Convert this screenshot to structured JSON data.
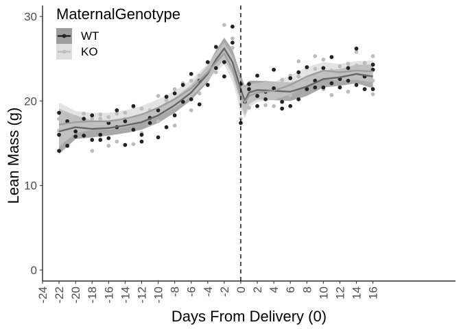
{
  "chart_data": {
    "type": "scatter",
    "title": "",
    "xlabel": "Days From Delivery (0)",
    "ylabel": "Lean Mass (g)",
    "xlim": [
      -24,
      26
    ],
    "ylim": [
      -1.3,
      31.3
    ],
    "x_ticks": [
      -24,
      -22,
      -20,
      -18,
      -16,
      -14,
      -12,
      -10,
      -8,
      -6,
      -4,
      -2,
      0,
      2,
      4,
      6,
      8,
      10,
      12,
      14,
      16
    ],
    "y_ticks": [
      0,
      10,
      20,
      30
    ],
    "grid": false,
    "vline": {
      "x": 0,
      "style": "dashed"
    },
    "legend": {
      "title": "MaternalGenotype",
      "position": "top-left",
      "entries": [
        "WT",
        "KO"
      ]
    },
    "colors": {
      "WT": "#222222",
      "KO": "#bdbdbd",
      "WT_line": "#666666",
      "KO_line": "#9e9e9e",
      "WT_band": "#8c8c8c",
      "KO_band": "#d0d0d0"
    },
    "series": [
      {
        "name": "WT",
        "points": [
          [
            -22,
            18.6
          ],
          [
            -22,
            16.0
          ],
          [
            -22,
            14.1
          ],
          [
            -21,
            17.6
          ],
          [
            -21,
            14.7
          ],
          [
            -20,
            16.4
          ],
          [
            -20,
            15.8
          ],
          [
            -19,
            15.9
          ],
          [
            -19,
            17.9
          ],
          [
            -18,
            15.4
          ],
          [
            -18,
            18.3
          ],
          [
            -17,
            16.0
          ],
          [
            -17,
            15.4
          ],
          [
            -16,
            17.4
          ],
          [
            -16,
            15.6
          ],
          [
            -15,
            18.9
          ],
          [
            -15,
            16.9
          ],
          [
            -14,
            14.8
          ],
          [
            -14,
            17.6
          ],
          [
            -13,
            16.6
          ],
          [
            -13,
            19.4
          ],
          [
            -12,
            15.2
          ],
          [
            -12,
            16.0
          ],
          [
            -11,
            18.0
          ],
          [
            -11,
            17.4
          ],
          [
            -10,
            15.7
          ],
          [
            -10,
            18.9
          ],
          [
            -9,
            16.9
          ],
          [
            -9,
            20.5
          ],
          [
            -8,
            18.3
          ],
          [
            -8,
            20.9
          ],
          [
            -7,
            19.9
          ],
          [
            -7,
            21.9
          ],
          [
            -6,
            20.2
          ],
          [
            -6,
            23.2
          ],
          [
            -5,
            19.6
          ],
          [
            -5,
            22.4
          ],
          [
            -4,
            21.9
          ],
          [
            -4,
            24.6
          ],
          [
            -3,
            26.4
          ],
          [
            -3,
            23.9
          ],
          [
            -2,
            24.6
          ],
          [
            -2,
            22.9
          ],
          [
            -1,
            28.8
          ],
          [
            -1,
            26.9
          ],
          [
            0,
            22.0
          ],
          [
            0,
            17.4
          ],
          [
            0.5,
            19.9
          ],
          [
            1,
            21.4
          ],
          [
            1,
            22.0
          ],
          [
            2,
            19.4
          ],
          [
            2,
            20.6
          ],
          [
            2,
            23.0
          ],
          [
            3,
            21.1
          ],
          [
            3,
            20.2
          ],
          [
            4,
            23.7
          ],
          [
            4,
            21.5
          ],
          [
            5,
            19.9
          ],
          [
            5,
            19.1
          ],
          [
            6,
            22.7
          ],
          [
            6,
            19.4
          ],
          [
            7,
            20.2
          ],
          [
            7,
            23.4
          ],
          [
            8,
            21.4
          ],
          [
            8,
            24.0
          ],
          [
            9,
            21.6
          ],
          [
            9,
            22.4
          ],
          [
            10,
            23.9
          ],
          [
            10,
            21.6
          ],
          [
            11,
            25.2
          ],
          [
            11,
            22.1
          ],
          [
            12,
            22.6
          ],
          [
            12,
            21.6
          ],
          [
            13,
            23.9
          ],
          [
            13,
            22.4
          ],
          [
            14,
            26.2
          ],
          [
            14,
            21.9
          ],
          [
            15,
            22.9
          ],
          [
            15,
            21.4
          ],
          [
            16,
            23.7
          ],
          [
            16,
            21.4
          ],
          [
            16,
            24.3
          ]
        ],
        "smooth": [
          [
            -22,
            16.4
          ],
          [
            -20,
            16.9
          ],
          [
            -18,
            16.7
          ],
          [
            -16,
            16.8
          ],
          [
            -14,
            17.1
          ],
          [
            -12,
            17.5
          ],
          [
            -10,
            18.3
          ],
          [
            -8,
            19.5
          ],
          [
            -6,
            21.0
          ],
          [
            -4,
            23.2
          ],
          [
            -3,
            24.9
          ],
          [
            -2,
            26.2
          ],
          [
            -1,
            24.6
          ],
          [
            0,
            21.4
          ],
          [
            0.5,
            20.0
          ],
          [
            1,
            21.0
          ],
          [
            2,
            21.3
          ],
          [
            4,
            21.2
          ],
          [
            6,
            21.1
          ],
          [
            8,
            21.7
          ],
          [
            10,
            22.6
          ],
          [
            12,
            22.8
          ],
          [
            14,
            23.2
          ],
          [
            16,
            22.9
          ]
        ],
        "band_width": [
          2.7,
          1.4,
          1.0,
          0.9,
          0.9,
          0.9,
          0.9,
          0.9,
          0.9,
          1.0,
          1.1,
          1.3,
          1.5,
          1.7,
          1.8,
          1.4,
          1.1,
          1.1,
          1.1,
          1.1,
          1.0,
          1.0,
          1.1,
          1.4
        ]
      },
      {
        "name": "KO",
        "points": [
          [
            -22,
            17.9
          ],
          [
            -22,
            16.5
          ],
          [
            -21,
            18.2
          ],
          [
            -21,
            17.5
          ],
          [
            -20,
            18.1
          ],
          [
            -20,
            17.0
          ],
          [
            -19,
            18.5
          ],
          [
            -19,
            17.6
          ],
          [
            -18,
            14.1
          ],
          [
            -18,
            17.9
          ],
          [
            -17,
            18.4
          ],
          [
            -17,
            17.9
          ],
          [
            -16,
            14.7
          ],
          [
            -16,
            18.1
          ],
          [
            -15,
            15.2
          ],
          [
            -15,
            18.5
          ],
          [
            -14,
            17.9
          ],
          [
            -14,
            18.6
          ],
          [
            -13,
            14.9
          ],
          [
            -13,
            19.3
          ],
          [
            -12,
            16.2
          ],
          [
            -12,
            19.1
          ],
          [
            -11,
            17.2
          ],
          [
            -11,
            18.9
          ],
          [
            -10,
            17.6
          ],
          [
            -10,
            20.6
          ],
          [
            -9,
            20.1
          ],
          [
            -9,
            19.6
          ],
          [
            -8,
            17.1
          ],
          [
            -8,
            21.4
          ],
          [
            -7,
            20.6
          ],
          [
            -7,
            22.1
          ],
          [
            -6,
            18.9
          ],
          [
            -6,
            22.4
          ],
          [
            -5,
            23.0
          ],
          [
            -5,
            20.9
          ],
          [
            -4,
            23.9
          ],
          [
            -4,
            22.6
          ],
          [
            -3,
            23.4
          ],
          [
            -3,
            25.2
          ],
          [
            -2,
            29.0
          ],
          [
            -2,
            24.6
          ],
          [
            -2,
            26.2
          ],
          [
            -1,
            27.4
          ],
          [
            -1,
            26.3
          ],
          [
            0,
            19.6
          ],
          [
            0,
            17.9
          ],
          [
            1,
            21.1
          ],
          [
            1,
            19.2
          ],
          [
            2,
            20.4
          ],
          [
            2,
            21.9
          ],
          [
            3,
            19.5
          ],
          [
            3,
            22.2
          ],
          [
            4,
            19.4
          ],
          [
            4,
            21.6
          ],
          [
            5,
            22.5
          ],
          [
            5,
            21.0
          ],
          [
            6,
            20.7
          ],
          [
            6,
            23.0
          ],
          [
            7,
            22.9
          ],
          [
            7,
            24.7
          ],
          [
            8,
            22.4
          ],
          [
            8,
            21.9
          ],
          [
            9,
            25.3
          ],
          [
            9,
            23.8
          ],
          [
            10,
            24.9
          ],
          [
            10,
            21.4
          ],
          [
            11,
            20.7
          ],
          [
            11,
            23.6
          ],
          [
            12,
            24.1
          ],
          [
            12,
            23.4
          ],
          [
            13,
            21.1
          ],
          [
            13,
            24.4
          ],
          [
            14,
            25.8
          ],
          [
            14,
            24.2
          ],
          [
            15,
            22.9
          ],
          [
            15,
            24.5
          ],
          [
            16,
            25.3
          ],
          [
            16,
            20.8
          ],
          [
            16,
            22.4
          ]
        ],
        "smooth": [
          [
            -22,
            17.2
          ],
          [
            -20,
            17.5
          ],
          [
            -18,
            17.6
          ],
          [
            -16,
            17.6
          ],
          [
            -14,
            17.9
          ],
          [
            -12,
            18.4
          ],
          [
            -10,
            19.2
          ],
          [
            -8,
            20.2
          ],
          [
            -6,
            21.5
          ],
          [
            -4,
            23.4
          ],
          [
            -3,
            24.6
          ],
          [
            -2,
            25.6
          ],
          [
            -1,
            23.8
          ],
          [
            0,
            20.6
          ],
          [
            0.5,
            19.8
          ],
          [
            1,
            20.6
          ],
          [
            2,
            21.0
          ],
          [
            4,
            21.2
          ],
          [
            6,
            21.9
          ],
          [
            8,
            22.9
          ],
          [
            10,
            23.6
          ],
          [
            12,
            23.4
          ],
          [
            14,
            23.6
          ],
          [
            16,
            23.5
          ]
        ],
        "band_width": [
          2.6,
          1.3,
          1.0,
          1.0,
          1.0,
          1.0,
          1.0,
          1.0,
          1.0,
          1.0,
          1.1,
          1.3,
          1.5,
          1.7,
          1.8,
          1.4,
          1.1,
          1.1,
          1.1,
          1.1,
          1.0,
          1.0,
          1.1,
          1.3
        ]
      }
    ]
  }
}
